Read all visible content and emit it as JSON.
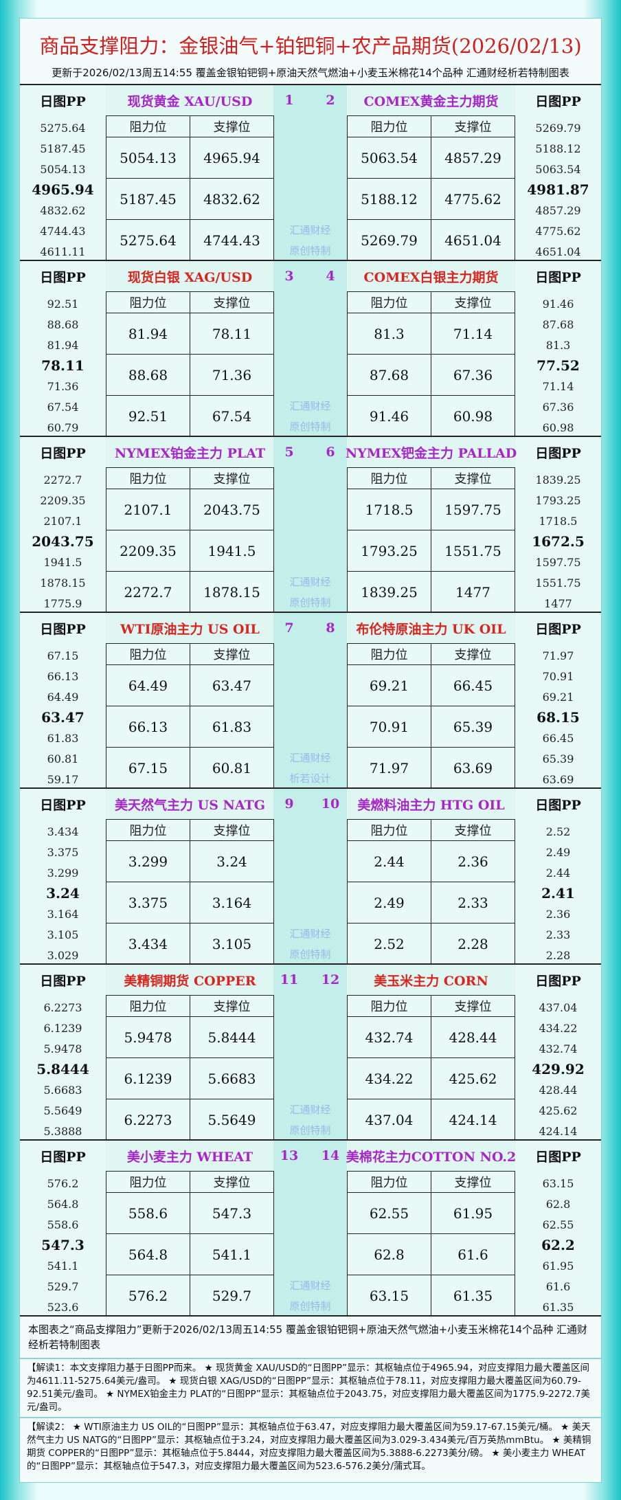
{
  "header": {
    "title": "商品支撑阻力：金银油气+铂钯铜+农产品期货(2026/02/13)",
    "subtitle": "更新于2026/02/13周五14:55 覆盖金银铂钯铜+原油天然气燃油+小麦玉米棉花14个品种 汇通财经析若特制图表"
  },
  "blocks": [
    {
      "nums": [
        "1",
        "2"
      ],
      "watermark": [
        "汇通财经",
        "原创特制"
      ],
      "left": {
        "pp_title": "日图PP",
        "name": "现货黄金 XAU/USD",
        "pp": [
          "5275.64",
          "5187.45",
          "5054.13",
          "4965.94",
          "4832.62",
          "4744.43",
          "4611.11"
        ],
        "cols": [
          "阻力位",
          "支撑位"
        ],
        "rows": [
          [
            "5054.13",
            "4965.94"
          ],
          [
            "5187.45",
            "4832.62"
          ],
          [
            "5275.64",
            "4744.43"
          ]
        ]
      },
      "right": {
        "pp_title": "日图PP",
        "name": "COMEX黄金主力期货",
        "pp": [
          "5269.79",
          "5188.12",
          "5063.54",
          "4981.87",
          "4857.29",
          "4775.62",
          "4651.04"
        ],
        "cols": [
          "阻力位",
          "支撑位"
        ],
        "rows": [
          [
            "5063.54",
            "4857.29"
          ],
          [
            "5188.12",
            "4775.62"
          ],
          [
            "5269.79",
            "4651.04"
          ]
        ]
      }
    },
    {
      "nums": [
        "3",
        "4"
      ],
      "watermark": [
        "汇通财经",
        "原创特制"
      ],
      "left": {
        "pp_title": "日图PP",
        "name": "现货白银 XAG/USD",
        "pp": [
          "92.51",
          "88.68",
          "81.94",
          "78.11",
          "71.36",
          "67.54",
          "60.79"
        ],
        "cols": [
          "阻力位",
          "支撑位"
        ],
        "rows": [
          [
            "81.94",
            "78.11"
          ],
          [
            "88.68",
            "71.36"
          ],
          [
            "92.51",
            "67.54"
          ]
        ]
      },
      "right": {
        "pp_title": "日图PP",
        "name": "COMEX白银主力期货",
        "pp": [
          "91.46",
          "87.68",
          "81.3",
          "77.52",
          "71.14",
          "67.36",
          "60.98"
        ],
        "cols": [
          "阻力位",
          "支撑位"
        ],
        "rows": [
          [
            "81.3",
            "71.14"
          ],
          [
            "87.68",
            "67.36"
          ],
          [
            "91.46",
            "60.98"
          ]
        ]
      }
    },
    {
      "nums": [
        "5",
        "6"
      ],
      "watermark": [
        "汇通财经",
        "原创特制"
      ],
      "left": {
        "pp_title": "日图PP",
        "name": "NYMEX铂金主力 PLAT",
        "pp": [
          "2272.7",
          "2209.35",
          "2107.1",
          "2043.75",
          "1941.5",
          "1878.15",
          "1775.9"
        ],
        "cols": [
          "阻力位",
          "支撑位"
        ],
        "rows": [
          [
            "2107.1",
            "2043.75"
          ],
          [
            "2209.35",
            "1941.5"
          ],
          [
            "2272.7",
            "1878.15"
          ]
        ]
      },
      "right": {
        "pp_title": "日图PP",
        "name": "NYMEX钯金主力 PALLAD",
        "pp": [
          "1839.25",
          "1793.25",
          "1718.5",
          "1672.5",
          "1597.75",
          "1551.75",
          "1477"
        ],
        "cols": [
          "阻力位",
          "支撑位"
        ],
        "rows": [
          [
            "1718.5",
            "1597.75"
          ],
          [
            "1793.25",
            "1551.75"
          ],
          [
            "1839.25",
            "1477"
          ]
        ]
      }
    },
    {
      "nums": [
        "7",
        "8"
      ],
      "watermark": [
        "汇通财经",
        "析若设计"
      ],
      "left": {
        "pp_title": "日图PP",
        "name": "WTI原油主力 US OIL",
        "pp": [
          "67.15",
          "66.13",
          "64.49",
          "63.47",
          "61.83",
          "60.81",
          "59.17"
        ],
        "cols": [
          "阻力位",
          "支撑位"
        ],
        "rows": [
          [
            "64.49",
            "63.47"
          ],
          [
            "66.13",
            "61.83"
          ],
          [
            "67.15",
            "60.81"
          ]
        ]
      },
      "right": {
        "pp_title": "日图PP",
        "name": "布伦特原油主力 UK OIL",
        "pp": [
          "71.97",
          "70.91",
          "69.21",
          "68.15",
          "66.45",
          "65.39",
          "63.69"
        ],
        "cols": [
          "阻力位",
          "支撑位"
        ],
        "rows": [
          [
            "69.21",
            "66.45"
          ],
          [
            "70.91",
            "65.39"
          ],
          [
            "71.97",
            "63.69"
          ]
        ]
      }
    },
    {
      "nums": [
        "9",
        "10"
      ],
      "watermark": [
        "汇通财经",
        "原创特制"
      ],
      "left": {
        "pp_title": "日图PP",
        "name": "美天然气主力 US NATG",
        "pp": [
          "3.434",
          "3.375",
          "3.299",
          "3.24",
          "3.164",
          "3.105",
          "3.029"
        ],
        "cols": [
          "阻力位",
          "支撑位"
        ],
        "rows": [
          [
            "3.299",
            "3.24"
          ],
          [
            "3.375",
            "3.164"
          ],
          [
            "3.434",
            "3.105"
          ]
        ]
      },
      "right": {
        "pp_title": "日图PP",
        "name": "美燃料油主力 HTG OIL",
        "pp": [
          "2.52",
          "2.49",
          "2.44",
          "2.41",
          "2.36",
          "2.33",
          "2.28"
        ],
        "cols": [
          "阻力位",
          "支撑位"
        ],
        "rows": [
          [
            "2.44",
            "2.36"
          ],
          [
            "2.49",
            "2.33"
          ],
          [
            "2.52",
            "2.28"
          ]
        ]
      }
    },
    {
      "nums": [
        "11",
        "12"
      ],
      "watermark": [
        "汇通财经",
        "原创特制"
      ],
      "left": {
        "pp_title": "日图PP",
        "name": "美精铜期货 COPPER",
        "pp": [
          "6.2273",
          "6.1239",
          "5.9478",
          "5.8444",
          "5.6683",
          "5.5649",
          "5.3888"
        ],
        "cols": [
          "阻力位",
          "支撑位"
        ],
        "rows": [
          [
            "5.9478",
            "5.8444"
          ],
          [
            "6.1239",
            "5.6683"
          ],
          [
            "6.2273",
            "5.5649"
          ]
        ]
      },
      "right": {
        "pp_title": "日图PP",
        "name": "美玉米主力 CORN",
        "pp": [
          "437.04",
          "434.22",
          "432.74",
          "429.92",
          "428.44",
          "425.62",
          "424.14"
        ],
        "cols": [
          "阻力位",
          "支撑位"
        ],
        "rows": [
          [
            "432.74",
            "428.44"
          ],
          [
            "434.22",
            "425.62"
          ],
          [
            "437.04",
            "424.14"
          ]
        ]
      }
    },
    {
      "nums": [
        "13",
        "14"
      ],
      "watermark": [
        "汇通财经",
        "原创特制"
      ],
      "left": {
        "pp_title": "日图PP",
        "name": "美小麦主力 WHEAT",
        "pp": [
          "576.2",
          "564.8",
          "558.6",
          "547.3",
          "541.1",
          "529.7",
          "523.6"
        ],
        "cols": [
          "阻力位",
          "支撑位"
        ],
        "rows": [
          [
            "558.6",
            "547.3"
          ],
          [
            "564.8",
            "541.1"
          ],
          [
            "576.2",
            "529.7"
          ]
        ]
      },
      "right": {
        "pp_title": "日图PP",
        "name": "美棉花主力COTTON NO.2",
        "pp": [
          "63.15",
          "62.8",
          "62.55",
          "62.2",
          "61.95",
          "61.6",
          "61.35"
        ],
        "cols": [
          "阻力位",
          "支撑位"
        ],
        "rows": [
          [
            "62.55",
            "61.95"
          ],
          [
            "62.8",
            "61.6"
          ],
          [
            "63.15",
            "61.35"
          ]
        ]
      }
    }
  ],
  "footer": "本图表之“商品支撑阻力”更新于2026/02/13周五14:55 覆盖金银铂钯铜+原油天然气燃油+小麦玉米棉花14个品种 汇通财经析若特制图表",
  "notes": [
    "【解读1：本文支撑阻力基于日图PP而来。 ★ 现货黄金 XAU/USD的“日图PP”显示：其枢轴点位于4965.94，对应支撑阻力最大覆盖区间为4611.11-5275.64美元/盎司。 ★ 现货白银 XAG/USD的“日图PP”显示：其枢轴点位于78.11，对应支撑阻力最大覆盖区间为60.79-92.51美元/盎司。 ★ NYMEX铂金主力 PLAT的“日图PP”显示：其枢轴点位于2043.75，对应支撑阻力最大覆盖区间为1775.9-2272.7美元/盎司。",
    "【解读2： ★ WTI原油主力 US OIL的“日图PP”显示：其枢轴点位于63.47，对应支撑阻力最大覆盖区间为59.17-67.15美元/桶。 ★ 美天然气主力 US NATG的“日图PP”显示：其枢轴点位于3.24，对应支撑阻力最大覆盖区间为3.029-3.434美元/百万英热mmBtu。 ★ 美精铜期货 COPPER的“日图PP”显示：其枢轴点位于5.8444，对应支撑阻力最大覆盖区间为5.3888-6.2273美分/磅。 ★ 美小麦主力 WHEAT的“日图PP”显示：其枢轴点位于547.3，对应支撑阻力最大覆盖区间为523.6-576.2美分/蒲式耳。"
  ]
}
